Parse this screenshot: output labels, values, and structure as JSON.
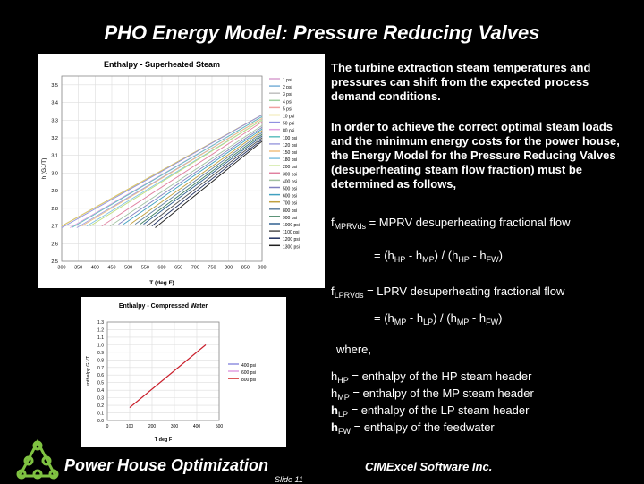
{
  "slide": {
    "title": "PHO Energy Model:  Pressure Reducing Valves",
    "footer_left": "Power House Optimization",
    "footer_right": "CIMExcel Software Inc.",
    "slide_number": "Slide 11"
  },
  "text": {
    "para1": "The turbine extraction steam temperatures and pressures can shift from the expected process demand conditions.",
    "para2": "In order to achieve the correct optimal steam loads and the minimum energy costs for the power house, the Energy Model for the Pressure Reducing Valves (desuperheating steam flow fraction) must be determined as follows,",
    "where": "where,"
  },
  "equations": {
    "mprv": {
      "sym": "f",
      "sub": "MPRVds",
      "rhs": " = MPRV desuperheating fractional flow"
    },
    "mprv_formula": {
      "p1": "= (h",
      "s1": "HP",
      "p2": " - h",
      "s2": "MP",
      "p3": ") / (h",
      "s3": "HP",
      "p4": " - h",
      "s4": "FW",
      "p5": ")"
    },
    "lprv": {
      "sym": "f",
      "sub": "LPRVds",
      "rhs": " = LPRV desuperheating fractional flow"
    },
    "lprv_formula": {
      "p1": "= (h",
      "s1": "MP",
      "p2": " - h",
      "s2": "LP",
      "p3": ") / (h",
      "s3": "MP",
      "p4": " - h",
      "s4": "FW",
      "p5": ")"
    },
    "defs": [
      {
        "h": "h",
        "sub": "HP",
        "rhs": " = enthalpy of the HP steam header"
      },
      {
        "h": "h",
        "sub": "MP",
        "rhs": " = enthalpy of the MP steam header"
      },
      {
        "h": "h",
        "sub": "LP",
        "rhs": " = enthalpy of the LP steam header"
      },
      {
        "h": "h",
        "sub": "FW",
        "rhs": " = enthalpy of the feedwater"
      }
    ]
  },
  "chart_data": [
    {
      "type": "line",
      "title": "Enthalpy  - Superheated Steam",
      "xlabel": "T (deg F)",
      "ylabel": "h (GJ/T)",
      "x_ticks": [
        300,
        350,
        400,
        450,
        500,
        550,
        600,
        650,
        700,
        750,
        800,
        850,
        900
      ],
      "y_ticks": [
        2.5,
        2.6,
        2.7,
        2.8,
        2.9,
        3.0,
        3.1,
        3.2,
        3.3,
        3.4,
        3.5
      ],
      "xlim": [
        300,
        900
      ],
      "ylim": [
        2.5,
        3.55
      ],
      "grid": true,
      "legend": "right",
      "series": [
        {
          "name": "1 psi",
          "color": "#d9a0d0",
          "x": [
            300,
            900
          ],
          "y": [
            2.7,
            3.33
          ]
        },
        {
          "name": "2 psi",
          "color": "#7ab0d8",
          "x": [
            300,
            900
          ],
          "y": [
            2.7,
            3.33
          ]
        },
        {
          "name": "3 psi",
          "color": "#c0c0c0",
          "x": [
            300,
            900
          ],
          "y": [
            2.7,
            3.33
          ]
        },
        {
          "name": "4 psi",
          "color": "#a0d0a0",
          "x": [
            300,
            900
          ],
          "y": [
            2.7,
            3.33
          ]
        },
        {
          "name": "5 psi",
          "color": "#f0a0a0",
          "x": [
            300,
            900
          ],
          "y": [
            2.7,
            3.33
          ]
        },
        {
          "name": "10 psi",
          "color": "#e0d060",
          "x": [
            300,
            900
          ],
          "y": [
            2.7,
            3.33
          ]
        },
        {
          "name": "50 psi",
          "color": "#9090e0",
          "x": [
            300,
            900
          ],
          "y": [
            2.69,
            3.33
          ]
        },
        {
          "name": "80 psi",
          "color": "#e0a0e0",
          "x": [
            325,
            900
          ],
          "y": [
            2.69,
            3.32
          ]
        },
        {
          "name": "100 psi",
          "color": "#60c0c0",
          "x": [
            330,
            900
          ],
          "y": [
            2.69,
            3.32
          ]
        },
        {
          "name": "120 psi",
          "color": "#a0a0e0",
          "x": [
            345,
            900
          ],
          "y": [
            2.69,
            3.31
          ]
        },
        {
          "name": "150 psi",
          "color": "#f0c080",
          "x": [
            360,
            900
          ],
          "y": [
            2.7,
            3.31
          ]
        },
        {
          "name": "180 psi",
          "color": "#80c0e0",
          "x": [
            375,
            900
          ],
          "y": [
            2.7,
            3.3
          ]
        },
        {
          "name": "200 psi",
          "color": "#c0e080",
          "x": [
            385,
            900
          ],
          "y": [
            2.7,
            3.3
          ]
        },
        {
          "name": "300 psi",
          "color": "#e080a0",
          "x": [
            420,
            900
          ],
          "y": [
            2.7,
            3.29
          ]
        },
        {
          "name": "400 psi",
          "color": "#a0c0a0",
          "x": [
            445,
            900
          ],
          "y": [
            2.7,
            3.27
          ]
        },
        {
          "name": "500 psi",
          "color": "#8080c0",
          "x": [
            470,
            900
          ],
          "y": [
            2.71,
            3.26
          ]
        },
        {
          "name": "600 psi",
          "color": "#40a0c0",
          "x": [
            485,
            900
          ],
          "y": [
            2.71,
            3.25
          ]
        },
        {
          "name": "700 psi",
          "color": "#c0a040",
          "x": [
            505,
            900
          ],
          "y": [
            2.71,
            3.24
          ]
        },
        {
          "name": "800 psi",
          "color": "#6080a0",
          "x": [
            520,
            900
          ],
          "y": [
            2.71,
            3.23
          ]
        },
        {
          "name": "900 psi",
          "color": "#408060",
          "x": [
            535,
            900
          ],
          "y": [
            2.71,
            3.22
          ]
        },
        {
          "name": "1000 psi",
          "color": "#306090",
          "x": [
            545,
            900
          ],
          "y": [
            2.71,
            3.21
          ]
        },
        {
          "name": "1100 psi",
          "color": "#505050",
          "x": [
            555,
            900
          ],
          "y": [
            2.7,
            3.2
          ]
        },
        {
          "name": "1200 psi",
          "color": "#203060",
          "x": [
            570,
            900
          ],
          "y": [
            2.7,
            3.19
          ]
        },
        {
          "name": "1300 psi",
          "color": "#202020",
          "x": [
            580,
            900
          ],
          "y": [
            2.69,
            3.18
          ]
        }
      ]
    },
    {
      "type": "line",
      "title": "Enthalpy - Compressed Water",
      "xlabel": "T deg F",
      "ylabel": "enthalpy  GJ/T",
      "x_ticks": [
        0,
        100,
        200,
        300,
        400,
        500
      ],
      "y_ticks": [
        0.0,
        0.1,
        0.2,
        0.3,
        0.4,
        0.5,
        0.6,
        0.7,
        0.8,
        0.9,
        1.0,
        1.1,
        1.2,
        1.3
      ],
      "xlim": [
        0,
        500
      ],
      "ylim": [
        0,
        1.3
      ],
      "grid": true,
      "legend": "right",
      "series": [
        {
          "name": "400 psi",
          "color": "#9090e0",
          "x": [
            100,
            440
          ],
          "y": [
            0.17,
            1.0
          ]
        },
        {
          "name": "600 psi",
          "color": "#e0a0e0",
          "x": [
            100,
            440
          ],
          "y": [
            0.17,
            1.0
          ]
        },
        {
          "name": "800 psi",
          "color": "#d02020",
          "x": [
            100,
            440
          ],
          "y": [
            0.17,
            1.0
          ]
        }
      ]
    }
  ]
}
